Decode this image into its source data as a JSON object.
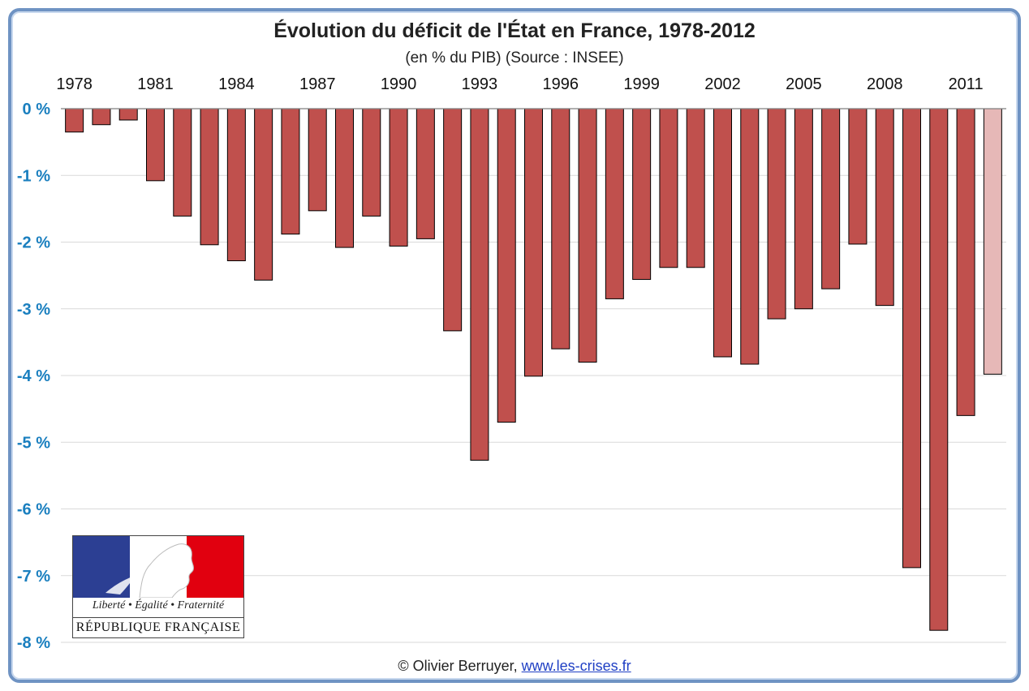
{
  "title": "Évolution du déficit de l'État en France, 1978-2012",
  "subtitle": "(en % du PIB) (Source : INSEE)",
  "credit": {
    "text": "© Olivier Berruyer, ",
    "link": "www.les-crises.fr"
  },
  "logo": {
    "motto": "Liberté • Égalité • Fraternité",
    "name": "RÉPUBLIQUE FRANÇAISE",
    "colors": {
      "blue": "#2c3f93",
      "red": "#e1000f"
    }
  },
  "chart_data": {
    "type": "bar",
    "categories": [
      "1978",
      "1979",
      "1980",
      "1981",
      "1982",
      "1983",
      "1984",
      "1985",
      "1986",
      "1987",
      "1988",
      "1989",
      "1990",
      "1991",
      "1992",
      "1993",
      "1994",
      "1995",
      "1996",
      "1997",
      "1998",
      "1999",
      "2000",
      "2001",
      "2002",
      "2003",
      "2004",
      "2005",
      "2006",
      "2007",
      "2008",
      "2009",
      "2010",
      "2011",
      "2012"
    ],
    "values": [
      -0.35,
      -0.24,
      -0.17,
      -1.08,
      -1.61,
      -2.04,
      -2.28,
      -2.57,
      -1.88,
      -1.53,
      -2.08,
      -1.61,
      -2.06,
      -1.95,
      -3.33,
      -5.27,
      -4.7,
      -4.01,
      -3.6,
      -3.8,
      -2.85,
      -2.56,
      -2.38,
      -2.38,
      -3.72,
      -3.83,
      -3.15,
      -3.0,
      -2.7,
      -2.03,
      -2.95,
      -6.88,
      -7.82,
      -4.6,
      -3.98
    ],
    "x_tick_labels": [
      "1978",
      "1981",
      "1984",
      "1987",
      "1990",
      "1993",
      "1996",
      "1999",
      "2002",
      "2005",
      "2008",
      "2011"
    ],
    "y_tick_labels": [
      "0 %",
      "-1 %",
      "-2 %",
      "-3 %",
      "-4 %",
      "-5 %",
      "-6 %",
      "-7 %",
      "-8 %"
    ],
    "ylim": [
      -8,
      0
    ],
    "grid": true,
    "x_axis_position": "top",
    "colors": {
      "bar": "#c0504d",
      "bar_last": "#e6b8b7",
      "bar_edge": "#000000",
      "y_tick": "#1a7fbf",
      "grid": "#d9d9d9"
    }
  }
}
